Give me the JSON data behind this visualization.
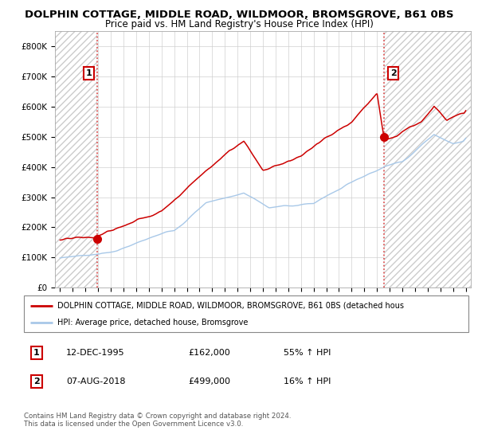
{
  "title": "DOLPHIN COTTAGE, MIDDLE ROAD, WILDMOOR, BROMSGROVE, B61 0BS",
  "subtitle": "Price paid vs. HM Land Registry's House Price Index (HPI)",
  "ylim": [
    0,
    850000
  ],
  "yticks": [
    0,
    100000,
    200000,
    300000,
    400000,
    500000,
    600000,
    700000,
    800000
  ],
  "ytick_labels": [
    "£0",
    "£100K",
    "£200K",
    "£300K",
    "£400K",
    "£500K",
    "£600K",
    "£700K",
    "£800K"
  ],
  "sale1_year": 1995.95,
  "sale1_price": 162000,
  "sale2_year": 2018.58,
  "sale2_price": 499000,
  "hpi_line_color": "#a8c8e8",
  "price_line_color": "#cc0000",
  "sale_dot_color": "#cc0000",
  "vline_color": "#dd4444",
  "hatch_edgecolor": "#cccccc",
  "grid_color": "#cccccc",
  "background_color": "#ffffff",
  "legend_label_red": "DOLPHIN COTTAGE, MIDDLE ROAD, WILDMOOR, BROMSGROVE, B61 0BS (detached hous",
  "legend_label_blue": "HPI: Average price, detached house, Bromsgrove",
  "footer": "Contains HM Land Registry data © Crown copyright and database right 2024.\nThis data is licensed under the Open Government Licence v3.0.",
  "title_fontsize": 9.5,
  "subtitle_fontsize": 8.5,
  "tick_fontsize": 7.5,
  "x_start_year": 1993,
  "x_end_year": 2025,
  "label1_date": "12-DEC-1995",
  "label1_price": "£162,000",
  "label1_hpi": "55% ↑ HPI",
  "label2_date": "07-AUG-2018",
  "label2_price": "£499,000",
  "label2_hpi": "16% ↑ HPI"
}
